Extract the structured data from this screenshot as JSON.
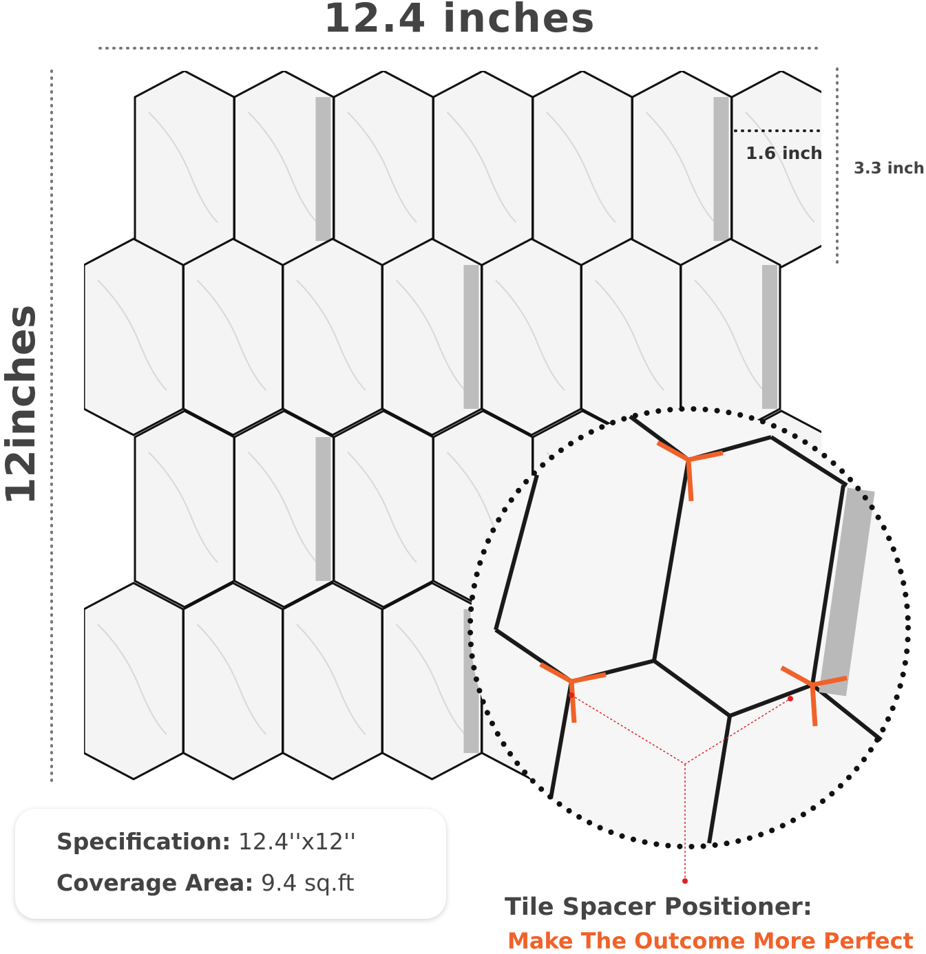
{
  "dimensions": {
    "width_label": "12.4 inches",
    "height_label": "12inches",
    "tile_width_label": "1.6 inch",
    "tile_height_label": "3.3 inch"
  },
  "spec_box": {
    "spec_key": "Specification:",
    "spec_value": "12.4''x12''",
    "coverage_key": "Coverage Area:",
    "coverage_value": "9.4 sq.ft"
  },
  "callout": {
    "title": "Tile Spacer Positioner:",
    "subtitle": "Make The Outcome More Perfect"
  },
  "colors": {
    "text": "#434343",
    "accent": "#f0622a",
    "grout": "#111111",
    "tile": "#f4f4f4",
    "metal_strip": "#bdbdbd"
  }
}
